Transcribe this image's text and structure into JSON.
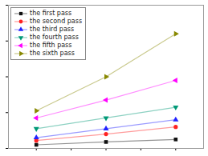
{
  "chart_data": {
    "type": "line",
    "x": [
      1,
      2,
      3
    ],
    "xlim": [
      0.6,
      3.4
    ],
    "xticks": [
      1,
      1.5,
      2,
      2.5,
      3
    ],
    "ylim": [
      0,
      40
    ],
    "yticks": [
      0,
      10,
      20,
      30,
      40
    ],
    "tick_labels": false,
    "grid": false,
    "legend": "upper left",
    "series": [
      {
        "name": "the first pass",
        "color": "#111111",
        "marker": "square",
        "values": [
          1.0,
          1.8,
          2.5
        ]
      },
      {
        "name": "the second pass",
        "color": "#ff2222",
        "marker": "circle",
        "values": [
          2.2,
          4.0,
          6.0
        ]
      },
      {
        "name": "the third pass",
        "color": "#2222ff",
        "marker": "triangle-up",
        "values": [
          3.0,
          5.5,
          8.0
        ]
      },
      {
        "name": "the fourth pass",
        "color": "#009977",
        "marker": "triangle-down",
        "values": [
          5.5,
          8.5,
          11.5
        ]
      },
      {
        "name": "the fifth pass",
        "color": "#ff00ff",
        "marker": "triangle-left",
        "values": [
          8.5,
          13.5,
          19.0
        ]
      },
      {
        "name": "the sixth pass",
        "color": "#888800",
        "marker": "triangle-right",
        "values": [
          10.5,
          20.0,
          32.0
        ]
      }
    ]
  }
}
